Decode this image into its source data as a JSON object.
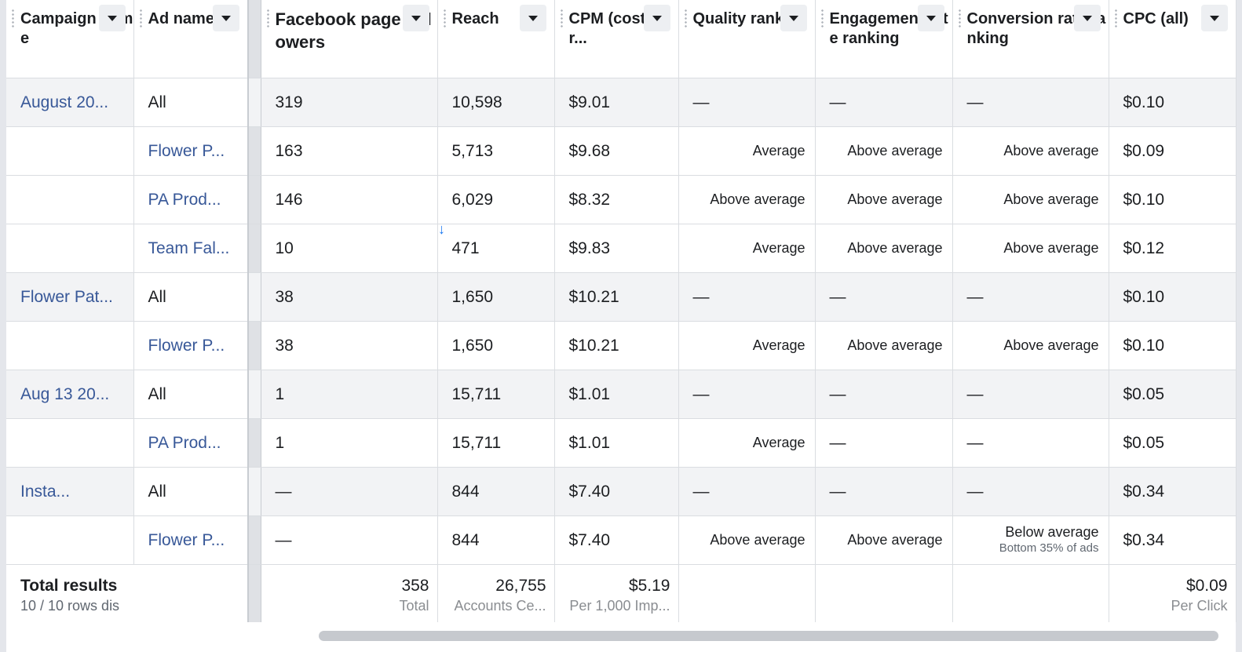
{
  "columns": [
    {
      "label": "Campaign name",
      "bold": false
    },
    {
      "label": "Ad name",
      "bold": false
    },
    {
      "label": "",
      "bold": false
    },
    {
      "label": "Facebook page followers",
      "bold": true
    },
    {
      "label": "Reach",
      "bold": false
    },
    {
      "label": "CPM (cost per...",
      "bold": false
    },
    {
      "label": "Quality ranking",
      "bold": false
    },
    {
      "label": "Engagement rate ranking",
      "bold": false
    },
    {
      "label": "Conversion rate ranking",
      "bold": false
    },
    {
      "label": "CPC (all)",
      "bold": false
    }
  ],
  "rows": [
    {
      "kind": "grp",
      "campaign": "August 20...",
      "ad": "All",
      "followers": "319",
      "reach": "10,598",
      "cpm": "$9.01",
      "quality": "—",
      "engagement": "—",
      "conversion": "—",
      "conversion_sub": "",
      "cpc": "$0.10"
    },
    {
      "kind": "sub",
      "campaign": "",
      "ad": "Flower P...",
      "followers": "163",
      "reach": "5,713",
      "cpm": "$9.68",
      "quality": "Average",
      "engagement": "Above average",
      "conversion": "Above average",
      "conversion_sub": "",
      "cpc": "$0.09"
    },
    {
      "kind": "sub",
      "campaign": "",
      "ad": "PA Prod...",
      "followers": "146",
      "reach": "6,029",
      "cpm": "$8.32",
      "quality": "Above average",
      "engagement": "Above average",
      "conversion": "Above average",
      "conversion_sub": "",
      "cpc": "$0.10"
    },
    {
      "kind": "sub",
      "campaign": "",
      "ad": "Team Fal...",
      "followers": "10",
      "reach": "471",
      "cpm": "$9.83",
      "quality": "Average",
      "engagement": "Above average",
      "conversion": "Above average",
      "conversion_sub": "",
      "cpc": "$0.12"
    },
    {
      "kind": "grp",
      "campaign": "Flower Pat...",
      "ad": "All",
      "followers": "38",
      "reach": "1,650",
      "cpm": "$10.21",
      "quality": "—",
      "engagement": "—",
      "conversion": "—",
      "conversion_sub": "",
      "cpc": "$0.10"
    },
    {
      "kind": "sub",
      "campaign": "",
      "ad": "Flower P...",
      "followers": "38",
      "reach": "1,650",
      "cpm": "$10.21",
      "quality": "Average",
      "engagement": "Above average",
      "conversion": "Above average",
      "conversion_sub": "",
      "cpc": "$0.10"
    },
    {
      "kind": "grp",
      "campaign": "Aug 13 20...",
      "ad": "All",
      "followers": "1",
      "reach": "15,711",
      "cpm": "$1.01",
      "quality": "—",
      "engagement": "—",
      "conversion": "—",
      "conversion_sub": "",
      "cpc": "$0.05"
    },
    {
      "kind": "sub",
      "campaign": "",
      "ad": "PA Prod...",
      "followers": "1",
      "reach": "15,711",
      "cpm": "$1.01",
      "quality": "Average",
      "engagement": "—",
      "conversion": "—",
      "conversion_sub": "",
      "cpc": "$0.05"
    },
    {
      "kind": "grp",
      "campaign": "Insta...",
      "ad": "All",
      "followers": "—",
      "reach": "844",
      "cpm": "$7.40",
      "quality": "—",
      "engagement": "—",
      "conversion": "—",
      "conversion_sub": "",
      "cpc": "$0.34"
    },
    {
      "kind": "sub",
      "campaign": "",
      "ad": "Flower P...",
      "followers": "—",
      "reach": "844",
      "cpm": "$7.40",
      "quality": "Above average",
      "engagement": "Above average",
      "conversion": "Below average",
      "conversion_sub": "Bottom 35% of ads",
      "cpc": "$0.34"
    }
  ],
  "totals": {
    "title": "Total results",
    "subtitle": "10 / 10 rows dis",
    "followers": "358",
    "followers_label": "Total",
    "reach": "26,755",
    "reach_label": "Accounts Ce...",
    "cpm": "$5.19",
    "cpm_label": "Per 1,000 Imp...",
    "cpc": "$0.09",
    "cpc_label": "Per Click"
  },
  "colors": {
    "link": "#385898",
    "group_bg": "#f2f3f5",
    "border": "#dadde1"
  },
  "icons": {
    "sort": "caret-down-icon",
    "drag": "drag-handle-icon",
    "sort_indicator": "arrow-down-icon"
  }
}
